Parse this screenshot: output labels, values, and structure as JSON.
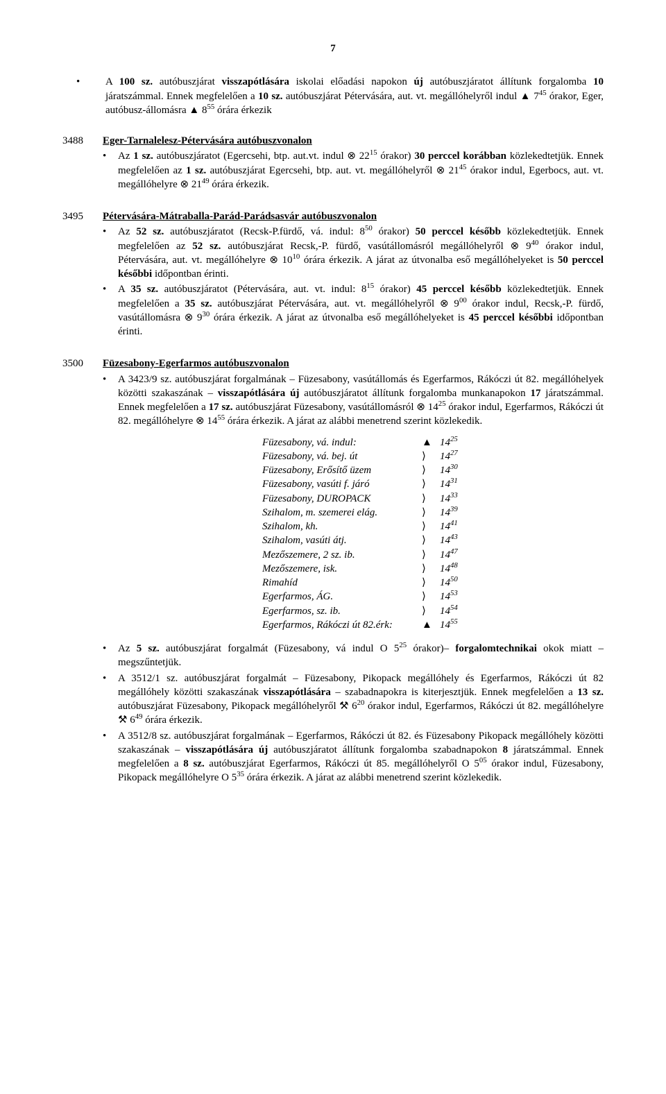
{
  "page_number": "7",
  "top_bullet": "A <b>100 sz.</b> autóbuszjárat <b>visszapótlására</b> iskolai előadási napokon <b>új</b> autóbuszjáratot állítunk forgalomba <b>10</b> járatszámmal. Ennek megfelelően a <b>10 sz.</b> autóbuszjárat Pétervására, aut. vt. megállóhelyről indul ▲ 7<sup>45</sup> órakor, Eger, autóbusz-állomásra ▲ 8<sup>55</sup> órára érkezik",
  "sections": [
    {
      "num": "3488",
      "title": "Eger-Tarnalelesz-Pétervására autóbuszvonalon",
      "bullets": [
        "Az <b>1 sz.</b> autóbuszjáratot (Egercsehi, btp. aut.vt. indul ⊗ 22<sup>15</sup> órakor) <b>30 perccel korábban</b> közlekedtetjük. Ennek megfelelően az <b>1 sz.</b> autóbuszjárat Egercsehi, btp. aut. vt. megállóhelyről ⊗ 21<sup>45</sup> órakor indul, Egerbocs, aut. vt. megállóhelyre ⊗ 21<sup>49</sup> órára érkezik."
      ]
    },
    {
      "num": "3495",
      "title": "Pétervására-Mátraballa-Parád-Parádsasvár autóbuszvonalon",
      "bullets": [
        "Az <b>52 sz.</b> autóbuszjáratot (Recsk-P.fürdő, vá. indul: 8<sup>50</sup> órakor) <b>50 perccel később</b> közlekedtetjük. Ennek megfelelően az <b>52 sz.</b> autóbuszjárat Recsk,-P. fürdő, vasútállomásról megállóhelyről ⊗ 9<sup>40</sup> órakor indul, Pétervására, aut. vt. megállóhelyre ⊗ 10<sup>10</sup> órára érkezik. A járat az útvonalba eső megállóhelyeket is <b>50 perccel későbbi</b> időpontban érinti.",
        "A <b>35 sz.</b> autóbuszjáratot (Pétervására, aut. vt. indul: 8<sup>15</sup> órakor) <b>45 perccel később</b> közlekedtetjük. Ennek megfelelően a <b>35 sz.</b> autóbuszjárat Pétervására, aut. vt. megállóhelyről ⊗ 9<sup>00</sup> órakor indul, Recsk,-P. fürdő, vasútállomásra ⊗ 9<sup>30</sup> órára érkezik. A járat az útvonalba eső megállóhelyeket is <b>45 perccel későbbi</b> időpontban érinti."
      ]
    },
    {
      "num": "3500",
      "title": "Füzesabony-Egerfarmos autóbuszvonalon",
      "bullets": [
        "A 3423/9 sz. autóbuszjárat forgalmának – Füzesabony, vasútállomás és Egerfarmos, Rákóczi út 82. megállóhelyek közötti szakaszának – <b>visszapótlására új</b> autóbuszjáratot állítunk forgalomba munkanapokon <b>17</b> járatszámmal. Ennek megfelelően a <b>17 sz.</b> autóbuszjárat Füzesabony, vasútállomásról ⊗ 14<sup>25</sup> órakor indul, Egerfarmos, Rákóczi út 82. megállóhelyre ⊗ 14<sup>55</sup> órára érkezik. A járat az alábbi menetrend szerint közlekedik."
      ],
      "timetable": [
        {
          "label": "Füzesabony, vá. indul:",
          "sym": "▲",
          "time": "14",
          "min": "25"
        },
        {
          "label": "Füzesabony, vá. bej. út",
          "sym": "⟩",
          "time": "14",
          "min": "27"
        },
        {
          "label": "Füzesabony, Erősítő üzem",
          "sym": "⟩",
          "time": "14",
          "min": "30"
        },
        {
          "label": "Füzesabony, vasúti f. járó",
          "sym": "⟩",
          "time": "14",
          "min": "31"
        },
        {
          "label": "Füzesabony, DUROPACK",
          "sym": "⟩",
          "time": "14",
          "min": "33"
        },
        {
          "label": "Szihalom, m. szemerei elág.",
          "sym": "⟩",
          "time": "14",
          "min": "39"
        },
        {
          "label": "Szihalom, kh.",
          "sym": "⟩",
          "time": "14",
          "min": "41"
        },
        {
          "label": "Szihalom, vasúti átj.",
          "sym": "⟩",
          "time": "14",
          "min": "43"
        },
        {
          "label": "Mezőszemere, 2 sz. ib.",
          "sym": "⟩",
          "time": "14",
          "min": "47"
        },
        {
          "label": "Mezőszemere, isk.",
          "sym": "⟩",
          "time": "14",
          "min": "48"
        },
        {
          "label": "Rimahíd",
          "sym": "⟩",
          "time": "14",
          "min": "50"
        },
        {
          "label": "Egerfarmos, ÁG.",
          "sym": "⟩",
          "time": "14",
          "min": "53"
        },
        {
          "label": "Egerfarmos, sz. ib.",
          "sym": "⟩",
          "time": "14",
          "min": "54"
        },
        {
          "label": "Egerfarmos, Rákóczi út 82.érk:",
          "sym": "▲",
          "time": "14",
          "min": "55"
        }
      ],
      "bullets_after": [
        "Az <b>5 sz.</b> autóbuszjárat forgalmát (Füzesabony, vá indul O 5<sup>25</sup> órakor)– <b>forgalomtechnikai</b> okok miatt – megszűntetjük.",
        "A 3512/1 sz. autóbuszjárat forgalmát – Füzesabony, Pikopack megállóhely és Egerfarmos, Rákóczi út 82 megállóhely közötti szakaszának <b>visszapótlására</b> – szabadnapokra is kiterjesztjük. Ennek megfelelően a <b>13 sz.</b> autóbuszjárat Füzesabony, Pikopack megállóhelyről ⚒ 6<sup>20</sup> órakor indul, Egerfarmos, Rákóczi út 82. megállóhelyre ⚒ 6<sup>49</sup> órára érkezik.",
        "A 3512/8 sz. autóbuszjárat forgalmának – Egerfarmos, Rákóczi út 82. és Füzesabony Pikopack megállóhely közötti szakaszának – <b>visszapótlására új</b> autóbuszjáratot állítunk forgalomba szabadnapokon <b>8</b> járatszámmal. Ennek megfelelően a <b>8 sz.</b> autóbuszjárat Egerfarmos, Rákóczi út 85. megállóhelyről O 5<sup>05</sup> órakor indul, Füzesabony, Pikopack megállóhelyre O 5<sup>35</sup> órára érkezik. A járat az alábbi menetrend szerint közlekedik."
      ]
    }
  ]
}
